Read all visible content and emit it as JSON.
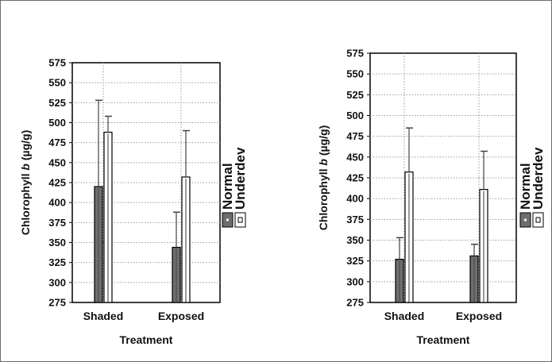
{
  "chart_data": [
    {
      "type": "bar",
      "ylabel": "Chlorophyll b (µg/g)",
      "ylabel_prefix": "Chlorophyll ",
      "ylabel_italic": "b",
      "ylabel_suffix": " (µg/g)",
      "xlabel": "Treatment",
      "categories": [
        "Shaded",
        "Exposed"
      ],
      "ylim": [
        275,
        575
      ],
      "yticks": [
        275,
        300,
        325,
        350,
        375,
        400,
        425,
        450,
        475,
        500,
        525,
        550,
        575
      ],
      "grid": true,
      "legend_placement": "right",
      "series": [
        {
          "name": "Normal",
          "values": [
            420,
            344
          ],
          "error_upper": [
            528,
            388
          ],
          "color": "#6e6e6e"
        },
        {
          "name": "Underdev",
          "values": [
            488,
            432
          ],
          "error_upper": [
            508,
            490
          ],
          "color": "#ffffff"
        }
      ]
    },
    {
      "type": "bar",
      "ylabel": "Chlorophyll b (µg/g)",
      "ylabel_prefix": "Chlorophyll ",
      "ylabel_italic": "b",
      "ylabel_suffix": " (µg/g)",
      "xlabel": "Treatment",
      "categories": [
        "Shaded",
        "Exposed"
      ],
      "ylim": [
        275,
        575
      ],
      "yticks": [
        275,
        300,
        325,
        350,
        375,
        400,
        425,
        450,
        475,
        500,
        525,
        550,
        575
      ],
      "grid": true,
      "legend_placement": "right",
      "series": [
        {
          "name": "Normal",
          "values": [
            327,
            331
          ],
          "error_upper": [
            353,
            345
          ],
          "color": "#6e6e6e"
        },
        {
          "name": "Underdev",
          "values": [
            432,
            411
          ],
          "error_upper": [
            485,
            457
          ],
          "color": "#ffffff"
        }
      ]
    }
  ]
}
